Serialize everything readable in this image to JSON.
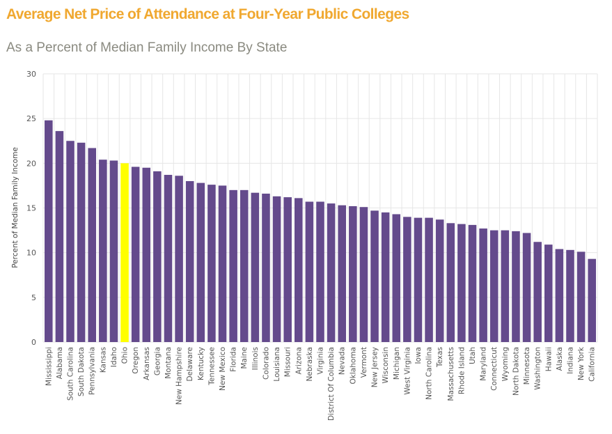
{
  "colors": {
    "title": "#f0a830",
    "subtitle": "#8a8a80",
    "bar": "#644a8c",
    "highlight": "#ffff00",
    "grid": "#e6e6e6"
  },
  "chart_data": {
    "type": "bar",
    "title": "Average Net Price of Attendance at Four-Year Public Colleges",
    "subtitle": "As a Percent of Median Family Income By State",
    "xlabel": "",
    "ylabel": "Percent of Median Family Income",
    "ylim": [
      0,
      30
    ],
    "yticks": [
      0,
      5,
      10,
      15,
      20,
      25,
      30
    ],
    "grid": true,
    "highlight_category": "Ohio",
    "categories": [
      "Mississippi",
      "Alabama",
      "South Carolina",
      "South Dakota",
      "Pennsylvania",
      "Kansas",
      "Idaho",
      "Ohio",
      "Oregon",
      "Arkansas",
      "Georgia",
      "Montana",
      "New Hampshire",
      "Delaware",
      "Kentucky",
      "Tennessee",
      "New Mexico",
      "Florida",
      "Maine",
      "Illinois",
      "Colorado",
      "Louisiana",
      "Missouri",
      "Arizona",
      "Nebraska",
      "Virginia",
      "District Of Columbia",
      "Nevada",
      "Oklahoma",
      "Vermont",
      "New Jersey",
      "Wisconsin",
      "Michigan",
      "West Virginia",
      "Iowa",
      "North Carolina",
      "Texas",
      "Massachusetts",
      "Rhode Island",
      "Utah",
      "Maryland",
      "Connecticut",
      "Wyoming",
      "North Dakota",
      "Minnesota",
      "Washington",
      "Hawaii",
      "Alaska",
      "Indiana",
      "New York",
      "California"
    ],
    "values": [
      24.8,
      23.6,
      22.5,
      22.3,
      21.7,
      20.4,
      20.3,
      20.0,
      19.6,
      19.5,
      19.1,
      18.7,
      18.6,
      18.0,
      17.8,
      17.6,
      17.5,
      17.0,
      17.0,
      16.7,
      16.6,
      16.3,
      16.2,
      16.1,
      15.7,
      15.7,
      15.5,
      15.3,
      15.2,
      15.1,
      14.7,
      14.5,
      14.3,
      14.0,
      13.9,
      13.9,
      13.7,
      13.3,
      13.2,
      13.1,
      12.7,
      12.5,
      12.5,
      12.4,
      12.2,
      11.2,
      10.9,
      10.4,
      10.3,
      10.1,
      9.3
    ]
  }
}
